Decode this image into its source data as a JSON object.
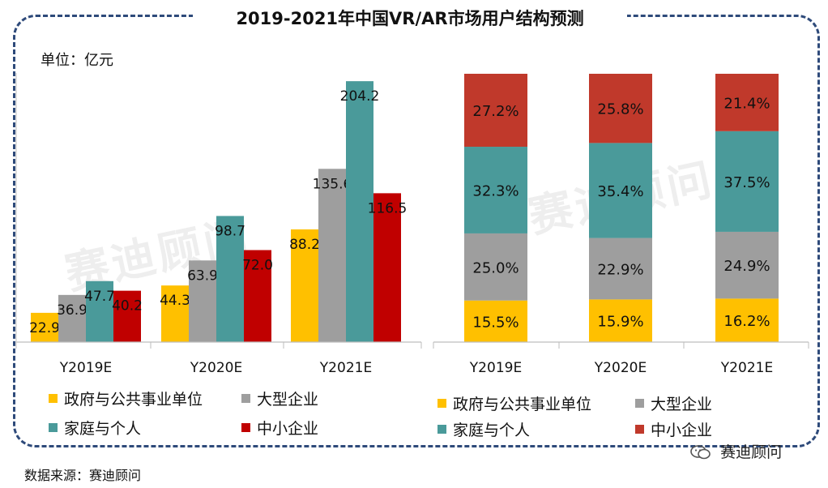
{
  "title": "2019-2021年中国VR/AR市场用户结构预测",
  "unit_label": "单位：亿元",
  "source": "数据来源：赛迪顾问",
  "brand": "赛迪顾问",
  "watermark": "赛迪顾问",
  "colors": {
    "gov": "#ffc000",
    "large": "#9e9e9e",
    "home": "#4a9a9a",
    "sme_left": "#c00000",
    "sme_right": "#c0392b",
    "frame": "#2e4a7a"
  },
  "chart_data": [
    {
      "type": "bar",
      "categories": [
        "Y2019E",
        "Y2020E",
        "Y2021E"
      ],
      "series": [
        {
          "name": "政府与公共事业单位",
          "values": [
            22.9,
            44.3,
            88.2
          ],
          "labels": [
            "22.9",
            "44.3",
            "88.2"
          ]
        },
        {
          "name": "大型企业",
          "values": [
            36.9,
            63.9,
            135.6
          ],
          "labels": [
            "36.9",
            "63.9",
            "135.6"
          ]
        },
        {
          "name": "家庭与个人",
          "values": [
            47.7,
            98.7,
            204.2
          ],
          "labels": [
            "47.7",
            "98.7",
            "204.2"
          ]
        },
        {
          "name": "中小企业",
          "values": [
            40.2,
            72.0,
            116.5
          ],
          "labels": [
            "40.2",
            "72.0",
            "116.5"
          ]
        }
      ],
      "ylim": [
        0,
        210
      ],
      "ylabel": "单位：亿元",
      "legend": "bottom"
    },
    {
      "type": "bar",
      "stacked": "percent",
      "categories": [
        "Y2019E",
        "Y2020E",
        "Y2021E"
      ],
      "series": [
        {
          "name": "政府与公共事业单位",
          "values": [
            15.5,
            15.9,
            16.2
          ],
          "labels": [
            "15.5%",
            "15.9%",
            "16.2%"
          ]
        },
        {
          "name": "大型企业",
          "values": [
            25.0,
            22.9,
            24.9
          ],
          "labels": [
            "25.0%",
            "22.9%",
            "24.9%"
          ]
        },
        {
          "name": "家庭与个人",
          "values": [
            32.3,
            35.4,
            37.5
          ],
          "labels": [
            "32.3%",
            "35.4%",
            "37.5%"
          ]
        },
        {
          "name": "中小企业",
          "values": [
            27.2,
            25.8,
            21.4
          ],
          "labels": [
            "27.2%",
            "25.8%",
            "21.4%"
          ]
        }
      ],
      "ylim": [
        0,
        100
      ],
      "legend": "bottom"
    }
  ]
}
